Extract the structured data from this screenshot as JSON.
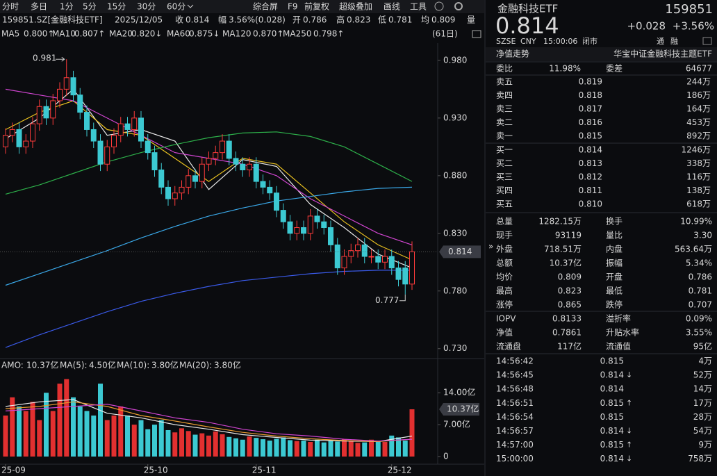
{
  "toolbar": {
    "items": [
      "分时",
      "多日",
      "1分",
      "5分",
      "15分",
      "30分",
      "60分",
      "综合屏",
      "F9",
      "前复权",
      "超级叠加",
      "画线",
      "工具"
    ]
  },
  "quote_line": {
    "symbol": "159851.SZ[金融科技ETF]",
    "date": "2025/12/05",
    "fields": [
      {
        "label": "收",
        "value": "0.814",
        "color": "#ff4040"
      },
      {
        "label": "幅",
        "value": "3.56%(0.028)",
        "color": "#ff4040"
      },
      {
        "label": "开",
        "value": "0.786",
        "color": "#e6e6e6"
      },
      {
        "label": "高",
        "value": "0.823",
        "color": "#ff4040"
      },
      {
        "label": "低",
        "value": "0.781",
        "color": "#1fd15a"
      },
      {
        "label": "均",
        "value": "0.809",
        "color": "#ff4040"
      },
      {
        "label": "量"
      }
    ]
  },
  "chart_data": [
    {
      "type": "candlestick",
      "period_label": "(61日)",
      "up_color": "#ff3b3b",
      "down_color": "#3cc9d2",
      "open": [
        0.905,
        0.915,
        0.92,
        0.905,
        0.91,
        0.925,
        0.94,
        0.93,
        0.945,
        0.955,
        0.965,
        0.95,
        0.935,
        0.92,
        0.91,
        0.89,
        0.905,
        0.915,
        0.925,
        0.92,
        0.93,
        0.91,
        0.9,
        0.885,
        0.87,
        0.86,
        0.865,
        0.87,
        0.88,
        0.875,
        0.89,
        0.895,
        0.9,
        0.91,
        0.895,
        0.89,
        0.885,
        0.89,
        0.875,
        0.87,
        0.865,
        0.85,
        0.84,
        0.83,
        0.835,
        0.83,
        0.845,
        0.84,
        0.835,
        0.82,
        0.8,
        0.81,
        0.815,
        0.82,
        0.81,
        0.81,
        0.805,
        0.81,
        0.8,
        0.8,
        0.786
      ],
      "high": [
        0.921,
        0.926,
        0.926,
        0.916,
        0.931,
        0.946,
        0.946,
        0.951,
        0.961,
        0.981,
        0.971,
        0.956,
        0.941,
        0.926,
        0.916,
        0.911,
        0.921,
        0.931,
        0.931,
        0.936,
        0.936,
        0.916,
        0.906,
        0.891,
        0.876,
        0.871,
        0.876,
        0.886,
        0.886,
        0.896,
        0.901,
        0.906,
        0.916,
        0.916,
        0.901,
        0.896,
        0.896,
        0.896,
        0.881,
        0.876,
        0.871,
        0.856,
        0.846,
        0.841,
        0.841,
        0.851,
        0.851,
        0.846,
        0.841,
        0.826,
        0.816,
        0.821,
        0.826,
        0.826,
        0.816,
        0.816,
        0.816,
        0.816,
        0.806,
        0.806,
        0.823
      ],
      "low": [
        0.899,
        0.909,
        0.899,
        0.899,
        0.904,
        0.919,
        0.924,
        0.924,
        0.939,
        0.949,
        0.944,
        0.929,
        0.914,
        0.904,
        0.884,
        0.884,
        0.899,
        0.909,
        0.914,
        0.914,
        0.904,
        0.894,
        0.879,
        0.864,
        0.854,
        0.854,
        0.859,
        0.864,
        0.869,
        0.869,
        0.884,
        0.889,
        0.894,
        0.889,
        0.884,
        0.879,
        0.879,
        0.869,
        0.864,
        0.859,
        0.844,
        0.834,
        0.824,
        0.824,
        0.824,
        0.824,
        0.834,
        0.829,
        0.814,
        0.794,
        0.794,
        0.804,
        0.809,
        0.804,
        0.804,
        0.799,
        0.799,
        0.794,
        0.784,
        0.777,
        0.781
      ],
      "close": [
        0.915,
        0.92,
        0.905,
        0.91,
        0.925,
        0.94,
        0.93,
        0.945,
        0.955,
        0.965,
        0.95,
        0.935,
        0.92,
        0.91,
        0.89,
        0.905,
        0.915,
        0.925,
        0.92,
        0.93,
        0.91,
        0.9,
        0.885,
        0.87,
        0.86,
        0.865,
        0.87,
        0.88,
        0.875,
        0.89,
        0.895,
        0.9,
        0.91,
        0.895,
        0.89,
        0.885,
        0.89,
        0.875,
        0.87,
        0.865,
        0.85,
        0.84,
        0.83,
        0.835,
        0.83,
        0.845,
        0.84,
        0.835,
        0.82,
        0.8,
        0.81,
        0.815,
        0.82,
        0.81,
        0.81,
        0.805,
        0.81,
        0.8,
        0.79,
        0.786,
        0.814
      ],
      "ylim": [
        0.722,
        0.995
      ],
      "yticks": [
        {
          "value": 0.98,
          "label": "0.980"
        },
        {
          "value": 0.93,
          "label": "0.930"
        },
        {
          "value": 0.88,
          "label": "0.880"
        },
        {
          "value": 0.83,
          "label": "0.830"
        },
        {
          "value": 0.78,
          "label": "0.780"
        },
        {
          "value": 0.73,
          "label": "0.730"
        }
      ],
      "ma_x": [
        0,
        5,
        10,
        15,
        20,
        25,
        30,
        35,
        40,
        45,
        50,
        55,
        60
      ],
      "series": [
        {
          "name": "MA5",
          "value_label": "0.800↑",
          "color": "#e8e8e8",
          "values": [
            0.912,
            0.93,
            0.955,
            0.915,
            0.92,
            0.91,
            0.868,
            0.894,
            0.888,
            0.855,
            0.835,
            0.812,
            0.8
          ]
        },
        {
          "name": "MA10",
          "value_label": "0.807↑",
          "color": "#e8c020",
          "values": [
            0.92,
            0.935,
            0.945,
            0.92,
            0.915,
            0.895,
            0.875,
            0.895,
            0.89,
            0.865,
            0.84,
            0.82,
            0.807
          ]
        },
        {
          "name": "MA20",
          "value_label": "0.820↓",
          "color": "#d045d0",
          "values": [
            0.955,
            0.95,
            0.945,
            0.93,
            0.915,
            0.9,
            0.895,
            0.89,
            0.88,
            0.86,
            0.845,
            0.83,
            0.82
          ]
        },
        {
          "name": "MA60",
          "value_label": "0.875↓",
          "color": "#2db04a",
          "values": [
            0.864,
            0.872,
            0.882,
            0.892,
            0.9,
            0.907,
            0.913,
            0.917,
            0.918,
            0.914,
            0.905,
            0.89,
            0.875
          ]
        },
        {
          "name": "MA120",
          "value_label": "0.870↑",
          "color": "#3aa8e8",
          "values": [
            0.785,
            0.795,
            0.805,
            0.815,
            0.826,
            0.836,
            0.845,
            0.852,
            0.858,
            0.862,
            0.866,
            0.869,
            0.87
          ]
        },
        {
          "name": "MA250",
          "value_label": "0.798↑",
          "color": "#3a5ae8",
          "values": [
            0.731,
            0.742,
            0.752,
            0.762,
            0.771,
            0.778,
            0.784,
            0.789,
            0.792,
            0.795,
            0.797,
            0.798,
            0.798
          ]
        }
      ]
    },
    {
      "type": "bar",
      "last_label": "10.37亿",
      "values": [
        9,
        13,
        11,
        10,
        12,
        8,
        14,
        10,
        16,
        17,
        13,
        11,
        10,
        9,
        16,
        8,
        9,
        11,
        9,
        7,
        8,
        6,
        7,
        8,
        5.8,
        5.3,
        6.2,
        5.6,
        4.8,
        5.1,
        4.6,
        5.5,
        4.9,
        4.3,
        4.0,
        3.7,
        4.4,
        4.1,
        3.8,
        3.5,
        3.9,
        4.2,
        3.6,
        3.4,
        3.5,
        3.2,
        3.7,
        3.1,
        3.6,
        3.3,
        3.8,
        3.4,
        3.0,
        3.1,
        3.7,
        3.3,
        3.2,
        4.6,
        4.2,
        3.5,
        10.37
      ],
      "ylim": [
        0,
        18.3
      ],
      "yticks": [
        0,
        {
          "value": 7,
          "label": "7.00亿"
        },
        {
          "value": 14,
          "label": "14.00亿"
        }
      ],
      "xticks": [
        {
          "value": 0,
          "label": "25-09"
        },
        {
          "value": 21,
          "label": "25-10"
        },
        {
          "value": 37,
          "label": "25-11"
        },
        {
          "value": 57,
          "label": "25-12"
        }
      ],
      "legend_name": "AMO:",
      "legend_value": "10.37亿",
      "ma_x": [
        0,
        5,
        10,
        15,
        20,
        25,
        30,
        35,
        40,
        45,
        50,
        55,
        60
      ],
      "series": [
        {
          "name": "MA(5):",
          "value_label": "4.50亿",
          "color": "#e8e8e8",
          "values": [
            11,
            12,
            12.5,
            9.5,
            8.5,
            7,
            6,
            4.8,
            4.2,
            3.6,
            3.4,
            3.3,
            4.5
          ]
        },
        {
          "name": "MA(10):",
          "value_label": "3.80亿",
          "color": "#e89a30",
          "values": [
            10.5,
            11,
            12,
            11,
            9,
            7.8,
            6.5,
            5.3,
            4.5,
            3.9,
            3.5,
            3.3,
            3.8
          ]
        },
        {
          "name": "MA(20):",
          "value_label": "3.80亿",
          "color": "#d045d0",
          "values": [
            10,
            10.5,
            11,
            11.5,
            10,
            8.5,
            7.5,
            6,
            5,
            4.5,
            3.8,
            3.4,
            3.8
          ]
        }
      ]
    }
  ],
  "right_panel": {
    "header": {
      "name": "金融科技ETF",
      "code": "159851",
      "price": "0.814",
      "change": "+0.028",
      "change_pct": "+3.56%",
      "exchange": "SZSE",
      "currency": "CNY",
      "time": "15:00:06",
      "status": "闭市",
      "tags": [
        "通",
        "融"
      ]
    },
    "tabs": [
      "净值走势",
      "华宝中证金融科技主题ETF"
    ],
    "order_ratio": [
      "委比",
      "11.98%",
      "委差",
      "64677"
    ],
    "asks": [
      [
        "卖五",
        "0.819",
        "244万"
      ],
      [
        "卖四",
        "0.818",
        "186万"
      ],
      [
        "卖三",
        "0.817",
        "164万"
      ],
      [
        "卖二",
        "0.816",
        "453万"
      ],
      [
        "卖一",
        "0.815",
        "892万"
      ]
    ],
    "bids": [
      [
        "买一",
        "0.814",
        "1246万"
      ],
      [
        "买二",
        "0.813",
        "338万"
      ],
      [
        "买三",
        "0.812",
        "116万"
      ],
      [
        "买四",
        "0.811",
        "138万"
      ],
      [
        "买五",
        "0.810",
        "618万"
      ]
    ],
    "stats": [
      [
        "总量",
        "1282.15万",
        "换手",
        "10.99%"
      ],
      [
        "现手",
        "93119",
        "量比",
        "3.30"
      ],
      [
        "外盘",
        "718.51万",
        "内盘",
        "563.64万"
      ],
      [
        "总额",
        "10.37亿",
        "振幅",
        "5.34%"
      ],
      [
        "均价",
        "0.809",
        "开盘",
        "0.786"
      ],
      [
        "最高",
        "0.823",
        "最低",
        "0.781"
      ],
      [
        "涨停",
        "0.865",
        "跌停",
        "0.707"
      ]
    ],
    "stats_colors": [
      [
        "#e6e6e6",
        "#e6e6e6"
      ],
      [
        "#e6e6e6",
        "#e6e6e6"
      ],
      [
        "#ff4040",
        "#1fd15a"
      ],
      [
        "#e6e6e6",
        "#e6e6e6"
      ],
      [
        "#ff4040",
        "#e6e6e6"
      ],
      [
        "#ff4040",
        "#1fd15a"
      ],
      [
        "#ff4040",
        "#1fd15a"
      ]
    ],
    "nav": [
      [
        "IOPV",
        "0.8133",
        "溢折率",
        "0.09%"
      ],
      [
        "净值",
        "0.7861",
        "升贴水率",
        "3.55%"
      ],
      [
        "流通盘",
        "117亿",
        "流通值",
        "95亿"
      ]
    ],
    "nav_colors": [
      [
        "#e6e6e6",
        "#ff4040"
      ],
      [
        "#ff4040",
        "#ff4040"
      ],
      [
        "#e6e6e6",
        "#e6e6e6"
      ]
    ],
    "ticks": [
      {
        "time": "14:56:42",
        "price": "0.815",
        "arrow": null,
        "volume": "4万",
        "color": "#ff4040"
      },
      {
        "time": "14:56:45",
        "price": "0.814",
        "arrow": "↓",
        "volume": "52万",
        "color": "#1fd15a"
      },
      {
        "time": "14:56:48",
        "price": "0.814",
        "arrow": null,
        "volume": "14万",
        "color": "#1fd15a"
      },
      {
        "time": "14:56:51",
        "price": "0.815",
        "arrow": "↑",
        "volume": "17万",
        "color": "#ff4040"
      },
      {
        "time": "14:56:54",
        "price": "0.815",
        "arrow": null,
        "volume": "28万",
        "color": "#ff4040"
      },
      {
        "time": "14:56:57",
        "price": "0.814",
        "arrow": "↓",
        "volume": "54万",
        "color": "#1fd15a"
      },
      {
        "time": "14:57:00",
        "price": "0.815",
        "arrow": "↑",
        "volume": "9万",
        "color": "#ff4040"
      },
      {
        "time": "15:00:00",
        "price": "0.814",
        "arrow": "↓",
        "volume": "758万",
        "color": "#1fd15a"
      }
    ]
  }
}
